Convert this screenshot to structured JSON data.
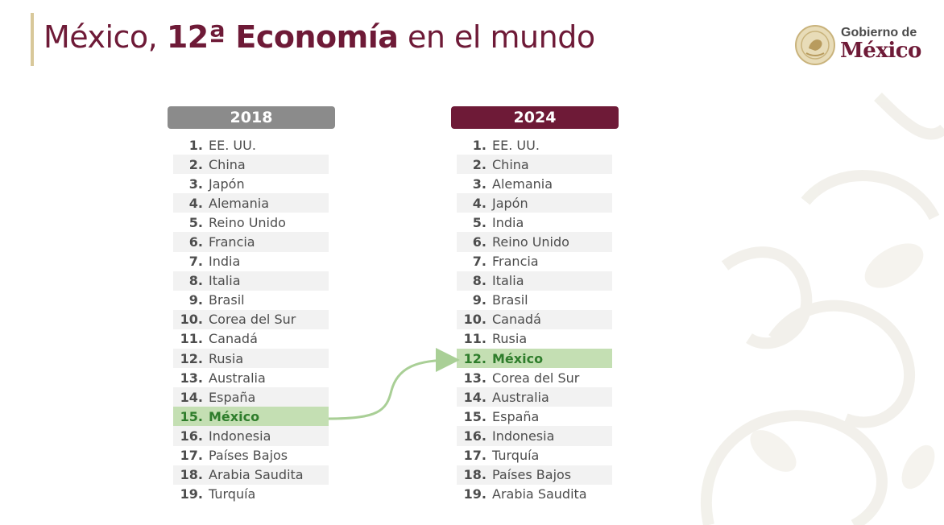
{
  "title": {
    "prefix": "México, ",
    "bold": "12ª Economía",
    "suffix": " en el mundo"
  },
  "logo": {
    "line1": "Gobierno de",
    "line2": "México"
  },
  "colors": {
    "brand": "#6e1a37",
    "gold": "#d8c89a",
    "highlight": "#c4dfb3",
    "highlight_text": "#2e7d2b",
    "header_2018": "#8b8b8b"
  },
  "ranking_2018": {
    "year": "2018",
    "highlight_index": 14,
    "rows": [
      {
        "rank": "1.",
        "country": "EE. UU."
      },
      {
        "rank": "2.",
        "country": "China"
      },
      {
        "rank": "3.",
        "country": "Japón"
      },
      {
        "rank": "4.",
        "country": "Alemania"
      },
      {
        "rank": "5.",
        "country": "Reino Unido"
      },
      {
        "rank": "6.",
        "country": "Francia"
      },
      {
        "rank": "7.",
        "country": "India"
      },
      {
        "rank": "8.",
        "country": "Italia"
      },
      {
        "rank": "9.",
        "country": "Brasil"
      },
      {
        "rank": "10.",
        "country": "Corea del Sur"
      },
      {
        "rank": "11.",
        "country": "Canadá"
      },
      {
        "rank": "12.",
        "country": "Rusia"
      },
      {
        "rank": "13.",
        "country": "Australia"
      },
      {
        "rank": "14.",
        "country": "España"
      },
      {
        "rank": "15.",
        "country": "México"
      },
      {
        "rank": "16.",
        "country": "Indonesia"
      },
      {
        "rank": "17.",
        "country": "Países Bajos"
      },
      {
        "rank": "18.",
        "country": "Arabia Saudita"
      },
      {
        "rank": "19.",
        "country": "Turquía"
      }
    ]
  },
  "ranking_2024": {
    "year": "2024",
    "highlight_index": 11,
    "rows": [
      {
        "rank": "1.",
        "country": "EE. UU."
      },
      {
        "rank": "2.",
        "country": "China"
      },
      {
        "rank": "3.",
        "country": "Alemania"
      },
      {
        "rank": "4.",
        "country": "Japón"
      },
      {
        "rank": "5.",
        "country": "India"
      },
      {
        "rank": "6.",
        "country": "Reino Unido"
      },
      {
        "rank": "7.",
        "country": "Francia"
      },
      {
        "rank": "8.",
        "country": "Italia"
      },
      {
        "rank": "9.",
        "country": "Brasil"
      },
      {
        "rank": "10.",
        "country": "Canadá"
      },
      {
        "rank": "11.",
        "country": "Rusia"
      },
      {
        "rank": "12.",
        "country": "México"
      },
      {
        "rank": "13.",
        "country": "Corea del Sur"
      },
      {
        "rank": "14.",
        "country": "Australia"
      },
      {
        "rank": "15.",
        "country": "España"
      },
      {
        "rank": "16.",
        "country": "Indonesia"
      },
      {
        "rank": "17.",
        "country": "Turquía"
      },
      {
        "rank": "18.",
        "country": "Países Bajos"
      },
      {
        "rank": "19.",
        "country": "Arabia Saudita"
      }
    ]
  }
}
